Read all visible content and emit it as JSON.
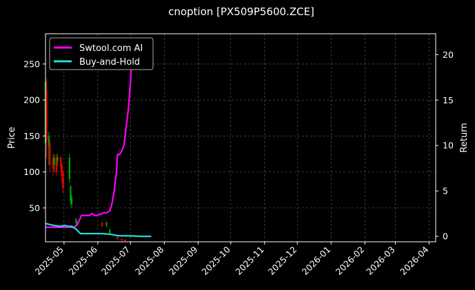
{
  "chart_data": {
    "type": "line",
    "title": "cnoption [PX509P5600.ZCE]",
    "ylabel_left": "Price",
    "ylabel_right": "Return",
    "xlim": [
      "2025-04-14",
      "2026-04-07"
    ],
    "ylim_left": [
      3,
      292
    ],
    "ylim_right": [
      -0.6,
      22.3
    ],
    "x_ticks": [
      "2025-05",
      "2025-06",
      "2025-07",
      "2025-08",
      "2025-09",
      "2025-10",
      "2025-11",
      "2025-12",
      "2026-01",
      "2026-02",
      "2026-03",
      "2026-04"
    ],
    "y_ticks_left": [
      50,
      100,
      150,
      200,
      250
    ],
    "y_ticks_right": [
      0,
      5,
      10,
      15,
      20
    ],
    "grid": true,
    "legend_position": "top-left",
    "colors": {
      "background": "#000000",
      "up_candle": "#00a000",
      "down_candle": "#e00000",
      "strategy": "#ff00ff",
      "benchmark": "#22dddd"
    },
    "series": [
      {
        "name": "Swtool.com AI",
        "axis": "right",
        "x": [
          "2025-04-14",
          "2025-04-20",
          "2025-04-26",
          "2025-05-02",
          "2025-05-06",
          "2025-05-10",
          "2025-05-12",
          "2025-05-14",
          "2025-05-17",
          "2025-05-21",
          "2025-05-24",
          "2025-05-27",
          "2025-05-29",
          "2025-05-31",
          "2025-06-02",
          "2025-06-04",
          "2025-06-06",
          "2025-06-09",
          "2025-06-12",
          "2025-06-14",
          "2025-06-16",
          "2025-06-18",
          "2025-06-19",
          "2025-06-21",
          "2025-06-23",
          "2025-06-25",
          "2025-06-27",
          "2025-06-29",
          "2025-07-01",
          "2025-07-02",
          "2025-07-03",
          "2025-07-04"
        ],
        "values": [
          1.0,
          1.0,
          1.0,
          1.0,
          1.0,
          1.0,
          1.2,
          1.5,
          2.3,
          2.3,
          2.3,
          2.5,
          2.3,
          2.3,
          2.4,
          2.4,
          2.6,
          2.6,
          2.8,
          3.6,
          5.0,
          7.0,
          9.0,
          9.0,
          9.4,
          10.0,
          12.0,
          14.0,
          17.0,
          20.0,
          21.5,
          21.5
        ]
      },
      {
        "name": "Buy-and-Hold",
        "axis": "right",
        "x": [
          "2025-04-14",
          "2025-04-18",
          "2025-04-22",
          "2025-04-27",
          "2025-05-02",
          "2025-05-05",
          "2025-05-08",
          "2025-05-12",
          "2025-05-16",
          "2025-05-20",
          "2025-05-25",
          "2025-05-30",
          "2025-06-05",
          "2025-06-10",
          "2025-06-14",
          "2025-06-18",
          "2025-06-22",
          "2025-07-01",
          "2025-07-10",
          "2025-07-20"
        ],
        "values": [
          1.4,
          1.3,
          1.2,
          1.1,
          1.2,
          1.1,
          1.1,
          0.8,
          0.3,
          0.3,
          0.3,
          0.3,
          0.3,
          0.25,
          0.2,
          0.1,
          0.05,
          0.05,
          0.0,
          0.0
        ]
      }
    ],
    "candles": [
      {
        "date": "2025-04-14",
        "open": 140,
        "close": 225,
        "high": 270,
        "low": 130
      },
      {
        "date": "2025-04-15",
        "open": 215,
        "close": 145,
        "high": 230,
        "low": 120
      },
      {
        "date": "2025-04-17",
        "open": 135,
        "close": 150,
        "high": 155,
        "low": 110
      },
      {
        "date": "2025-04-18",
        "open": 140,
        "close": 110,
        "high": 145,
        "low": 100
      },
      {
        "date": "2025-04-21",
        "open": 120,
        "close": 105,
        "high": 125,
        "low": 95
      },
      {
        "date": "2025-04-22",
        "open": 110,
        "close": 120,
        "high": 125,
        "low": 100
      },
      {
        "date": "2025-04-24",
        "open": 120,
        "close": 100,
        "high": 125,
        "low": 95
      },
      {
        "date": "2025-04-25",
        "open": 115,
        "close": 120,
        "high": 125,
        "low": 108
      },
      {
        "date": "2025-04-28",
        "open": 120,
        "close": 108,
        "high": 123,
        "low": 100
      },
      {
        "date": "2025-04-29",
        "open": 110,
        "close": 95,
        "high": 112,
        "low": 85
      },
      {
        "date": "2025-04-30",
        "open": 100,
        "close": 78,
        "high": 102,
        "low": 70
      },
      {
        "date": "2025-05-06",
        "open": 90,
        "close": 120,
        "high": 125,
        "low": 85
      },
      {
        "date": "2025-05-07",
        "open": 60,
        "close": 80,
        "high": 82,
        "low": 55
      },
      {
        "date": "2025-05-08",
        "open": 55,
        "close": 65,
        "high": 68,
        "low": 50
      },
      {
        "date": "2025-05-12",
        "open": 30,
        "close": 35,
        "high": 36,
        "low": 28
      },
      {
        "date": "2025-05-13",
        "open": 25,
        "close": 30,
        "high": 31,
        "low": 24
      },
      {
        "date": "2025-06-05",
        "open": 30,
        "close": 25,
        "high": 31,
        "low": 23
      },
      {
        "date": "2025-06-09",
        "open": 25,
        "close": 30,
        "high": 31,
        "low": 24
      },
      {
        "date": "2025-06-12",
        "open": 15,
        "close": 20,
        "high": 21,
        "low": 14
      },
      {
        "date": "2025-06-19",
        "open": 10,
        "close": 7,
        "high": 11,
        "low": 6
      },
      {
        "date": "2025-06-23",
        "open": 7,
        "close": 5,
        "high": 8,
        "low": 4
      },
      {
        "date": "2025-06-26",
        "open": 6,
        "close": 4,
        "high": 7,
        "low": 3
      }
    ]
  }
}
